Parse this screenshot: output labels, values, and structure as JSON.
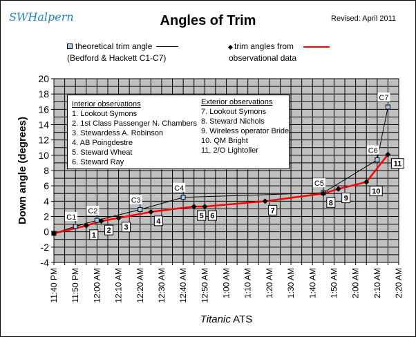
{
  "logo": "SWHalpern",
  "title": "Angles of Trim",
  "revised": "Revised: April 2011",
  "legend": {
    "theoretical_line1": "theoretical trim angle",
    "theoretical_line2": "(Bedford & Hackett C1-C7)",
    "observed_line1": "trim angles from",
    "observed_line2": "observational data"
  },
  "observations_box": {
    "interior_header": "Interior observations",
    "interior": [
      "1. Lookout  Symons",
      "2. 1st Class Passenger N. Chambers",
      "3. Stewardess A. Robinson",
      "4. AB Poingdestre",
      "5. Steward Wheat",
      "6. Steward Ray"
    ],
    "exterior_header": "Exterior observations",
    "exterior": [
      "7. Lookout Symons",
      "8. Steward Nichols",
      "9. Wireless operator Bride",
      "10. QM Bright",
      "11. 2/O Lightoller"
    ]
  },
  "chart_data": {
    "type": "line",
    "title": "Angles of Trim",
    "xlabel_italic": "Titanic",
    "xlabel_rest": " ATS",
    "ylabel": "Down angle (degrees)",
    "x_unit": "minutes after 11:40 PM",
    "xlim": [
      0,
      160
    ],
    "ylim": [
      -4,
      20
    ],
    "x_tick_labels": [
      "11:40 PM",
      "11:50 PM",
      "12:00 AM",
      "12:10 AM",
      "12:20 AM",
      "12:30 AM",
      "12:40 AM",
      "12:50 AM",
      "1:00 AM",
      "1:10 AM",
      "1:20 AM",
      "1:30 AM",
      "1:40 AM",
      "1:50 AM",
      "2:00 AM",
      "2:10 AM",
      "2:20 AM"
    ],
    "y_ticks": [
      -4,
      -2,
      0,
      2,
      4,
      6,
      8,
      10,
      12,
      14,
      16,
      18,
      20
    ],
    "grid": true,
    "colors": {
      "plot_bg": "#c0c0c0",
      "theoretical": "#000000",
      "observed": "#ff0000",
      "marker_sq": "#a6caf0"
    },
    "series": [
      {
        "name": "theoretical trim angle",
        "points": [
          {
            "x": 0,
            "y": -0.2,
            "label": ""
          },
          {
            "x": 10,
            "y": 0.7,
            "label": "C1"
          },
          {
            "x": 20,
            "y": 1.5,
            "label": "C2"
          },
          {
            "x": 40,
            "y": 2.9,
            "label": "C3"
          },
          {
            "x": 60,
            "y": 4.5,
            "label": "C4"
          },
          {
            "x": 125,
            "y": 5.1,
            "label": "C5"
          },
          {
            "x": 150,
            "y": 9.4,
            "label": "C6"
          },
          {
            "x": 155,
            "y": 16.3,
            "label": "C7"
          }
        ]
      },
      {
        "name": "trim angles from observational data",
        "points": [
          {
            "x": 0,
            "y": -0.2,
            "label": ""
          },
          {
            "x": 15,
            "y": 0.8,
            "label": "1"
          },
          {
            "x": 22,
            "y": 1.4,
            "label": "2"
          },
          {
            "x": 30,
            "y": 1.8,
            "label": "3"
          },
          {
            "x": 45,
            "y": 2.6,
            "label": "4"
          },
          {
            "x": 65,
            "y": 3.3,
            "label": "5"
          },
          {
            "x": 70,
            "y": 3.3,
            "label": "6"
          },
          {
            "x": 98,
            "y": 4.0,
            "label": "7"
          },
          {
            "x": 125,
            "y": 5.0,
            "label": "8"
          },
          {
            "x": 132,
            "y": 5.6,
            "label": "9"
          },
          {
            "x": 145,
            "y": 6.5,
            "label": "10"
          },
          {
            "x": 155,
            "y": 10.1,
            "label": "11"
          }
        ]
      }
    ]
  }
}
